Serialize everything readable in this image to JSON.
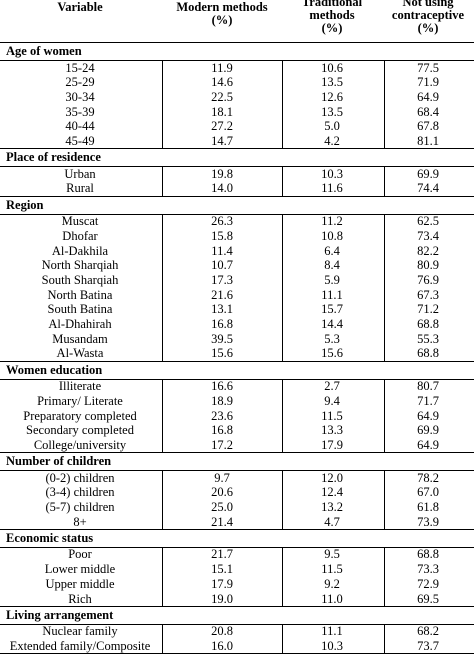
{
  "header": {
    "variable": "Variable",
    "modern": [
      "Modern methods",
      "(%)"
    ],
    "traditional": [
      "Traditional",
      "methods",
      "(%)"
    ],
    "not_using": [
      "Not using",
      "contraceptive",
      "(%)"
    ]
  },
  "sections": [
    {
      "title": "Age of women",
      "rows": [
        [
          "15-24",
          "11.9",
          "10.6",
          "77.5"
        ],
        [
          "25-29",
          "14.6",
          "13.5",
          "71.9"
        ],
        [
          "30-34",
          "22.5",
          "12.6",
          "64.9"
        ],
        [
          "35-39",
          "18.1",
          "13.5",
          "68.4"
        ],
        [
          "40-44",
          "27.2",
          "5.0",
          "67.8"
        ],
        [
          "45-49",
          "14.7",
          "4.2",
          "81.1"
        ]
      ]
    },
    {
      "title": "Place of residence",
      "rows": [
        [
          "Urban",
          "19.8",
          "10.3",
          "69.9"
        ],
        [
          "Rural",
          "14.0",
          "11.6",
          "74.4"
        ]
      ]
    },
    {
      "title": "Region",
      "rows": [
        [
          "Muscat",
          "26.3",
          "11.2",
          "62.5"
        ],
        [
          "Dhofar",
          "15.8",
          "10.8",
          "73.4"
        ],
        [
          "Al-Dakhila",
          "11.4",
          "6.4",
          "82.2"
        ],
        [
          "North Sharqiah",
          "10.7",
          "8.4",
          "80.9"
        ],
        [
          "South Sharqiah",
          "17.3",
          "5.9",
          "76.9"
        ],
        [
          "North Batina",
          "21.6",
          "11.1",
          "67.3"
        ],
        [
          "South Batina",
          "13.1",
          "15.7",
          "71.2"
        ],
        [
          "Al-Dhahirah",
          "16.8",
          "14.4",
          "68.8"
        ],
        [
          "Musandam",
          "39.5",
          "5.3",
          "55.3"
        ],
        [
          "Al-Wasta",
          "15.6",
          "15.6",
          "68.8"
        ]
      ]
    },
    {
      "title": "Women education",
      "rows": [
        [
          "Illiterate",
          "16.6",
          "2.7",
          "80.7"
        ],
        [
          "Primary/ Literate",
          "18.9",
          "9.4",
          "71.7"
        ],
        [
          "Preparatory completed",
          "23.6",
          "11.5",
          "64.9"
        ],
        [
          "Secondary completed",
          "16.8",
          "13.3",
          "69.9"
        ],
        [
          "College/university",
          "17.2",
          "17.9",
          "64.9"
        ]
      ]
    },
    {
      "title": "Number of children",
      "rows": [
        [
          "(0-2) children",
          "9.7",
          "12.0",
          "78.2"
        ],
        [
          "(3-4) children",
          "20.6",
          "12.4",
          "67.0"
        ],
        [
          "(5-7) children",
          "25.0",
          "13.2",
          "61.8"
        ],
        [
          "8+",
          "21.4",
          "4.7",
          "73.9"
        ]
      ]
    },
    {
      "title": "Economic status",
      "rows": [
        [
          "Poor",
          "21.7",
          "9.5",
          "68.8"
        ],
        [
          "Lower middle",
          "15.1",
          "11.5",
          "73.3"
        ],
        [
          "Upper middle",
          "17.9",
          "9.2",
          "72.9"
        ],
        [
          "Rich",
          "19.0",
          "11.0",
          "69.5"
        ]
      ]
    },
    {
      "title": "Living arrangement",
      "rows": [
        [
          "Nuclear family",
          "20.8",
          "11.1",
          "68.2"
        ],
        [
          "Extended family/Composite",
          "16.0",
          "10.3",
          "73.7"
        ]
      ]
    }
  ]
}
